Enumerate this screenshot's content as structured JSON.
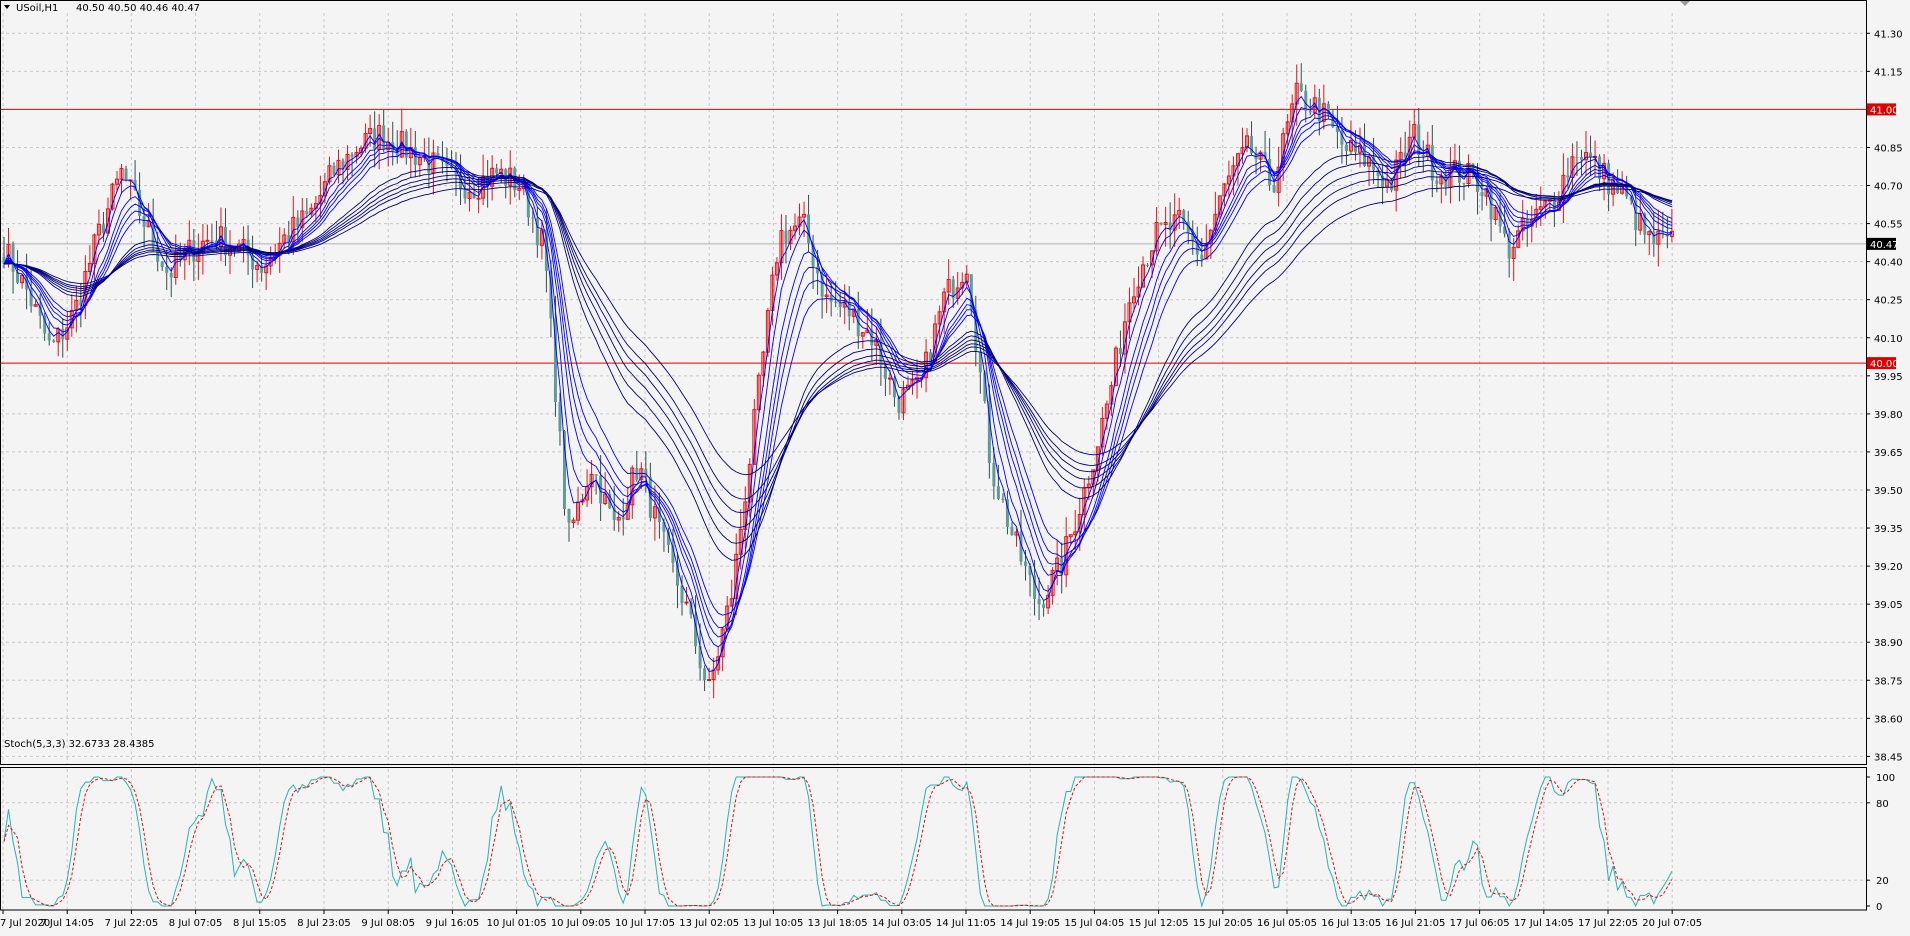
{
  "header": {
    "symbol": "USoil,H1",
    "ohlc": "40.50 40.50 40.46 40.47"
  },
  "indicator": {
    "label": "Stoch(5,3,3) 32.6733 28.4385"
  },
  "colors": {
    "background": "#f4f4f4",
    "grid": "#c8c8c8",
    "bull_candle": "#e0161b",
    "bear_candle": "#5f9c98",
    "ribbon_fast": "#0000ff",
    "ribbon_slow": "#000080",
    "level_line": "#e00000",
    "stoch_main": "#2ab3b0",
    "stoch_signal": "#e01010"
  },
  "chart_data": [
    {
      "type": "candlestick",
      "title": "USoil,H1",
      "x_tick_labels": [
        "7 Jul 2020",
        "7 Jul 14:05",
        "7 Jul 22:05",
        "8 Jul 07:05",
        "8 Jul 15:05",
        "8 Jul 23:05",
        "9 Jul 08:05",
        "9 Jul 16:05",
        "10 Jul 01:05",
        "10 Jul 09:05",
        "10 Jul 17:05",
        "13 Jul 02:05",
        "13 Jul 10:05",
        "13 Jul 18:05",
        "14 Jul 03:05",
        "14 Jul 11:05",
        "14 Jul 19:05",
        "15 Jul 04:05",
        "15 Jul 12:05",
        "15 Jul 20:05",
        "16 Jul 05:05",
        "16 Jul 13:05",
        "16 Jul 21:05",
        "17 Jul 06:05",
        "17 Jul 14:05",
        "17 Jul 22:05",
        "20 Jul 07:05"
      ],
      "y_tick_labels": [
        "41.30",
        "41.15",
        "40.85",
        "40.70",
        "40.55",
        "40.40",
        "40.25",
        "40.10",
        "39.95",
        "39.80",
        "39.65",
        "39.50",
        "39.35",
        "39.20",
        "39.05",
        "38.90",
        "38.75",
        "38.60",
        "38.45"
      ],
      "ylim": [
        38.42,
        41.38
      ],
      "grid": true,
      "horizontal_levels": [
        {
          "price": 41.0,
          "label": "41.00"
        },
        {
          "price": 40.0,
          "label": "40.00"
        }
      ],
      "current_price": {
        "price": 40.47,
        "label": "40.47"
      },
      "close_path": [
        40.45,
        40.28,
        40.05,
        40.2,
        40.5,
        40.75,
        40.55,
        40.35,
        40.45,
        40.5,
        40.45,
        40.38,
        40.5,
        40.58,
        40.75,
        40.85,
        40.9,
        40.85,
        40.8,
        40.72,
        40.7,
        40.75,
        40.7,
        40.45,
        39.3,
        39.6,
        39.35,
        39.6,
        39.3,
        39.05,
        38.7,
        39.1,
        39.8,
        40.5,
        40.55,
        40.25,
        40.2,
        40.1,
        39.85,
        39.9,
        40.25,
        40.4,
        39.6,
        39.3,
        39.05,
        39.2,
        39.5,
        39.85,
        40.3,
        40.5,
        40.55,
        40.42,
        40.7,
        40.85,
        40.7,
        41.05,
        41.0,
        40.85,
        40.8,
        40.7,
        40.9,
        40.75,
        40.75,
        40.7,
        40.45,
        40.55,
        40.65,
        40.85,
        40.75,
        40.65,
        40.48,
        40.47
      ],
      "ribbon_ema_periods": [
        3,
        5,
        8,
        10,
        12,
        15,
        30,
        35,
        40,
        45,
        50,
        60
      ]
    },
    {
      "type": "line",
      "title": "Stoch(5,3,3)",
      "ylim": [
        0,
        100
      ],
      "y_tick_labels": [
        "100",
        "80",
        "20",
        "0"
      ],
      "levels": [
        80,
        20
      ],
      "series": [
        {
          "name": "main",
          "value": 32.6733
        },
        {
          "name": "signal",
          "value": 28.4385
        }
      ]
    }
  ]
}
